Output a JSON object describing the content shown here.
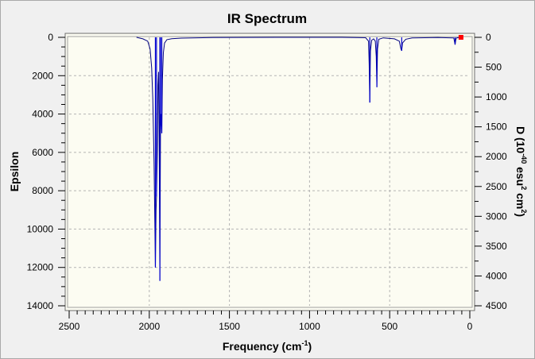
{
  "chart_data": {
    "type": "line",
    "title": "IR Spectrum",
    "xlabel": "Frequency (cm-1)",
    "xlabel_base": "Frequency (cm",
    "xlabel_sup": "-1",
    "xlabel_tail": ")",
    "ylabel_left": "Epsilon",
    "ylabel_right": "D (10-40 esu2 cm2)",
    "ylabel_right_parts": {
      "a": "D (10",
      "a_sup": "-40",
      "b": " esu",
      "b_sup": "2",
      "c": " cm",
      "c_sup": "2",
      "d": ")"
    },
    "x_reversed": true,
    "xlim": [
      2500,
      0
    ],
    "x_ticks": [
      "2500",
      "2000",
      "1500",
      "1000",
      "500",
      "0"
    ],
    "ylim_left": [
      0,
      14000
    ],
    "y_ticks_left": [
      "0",
      "2000",
      "4000",
      "6000",
      "8000",
      "10000",
      "12000",
      "14000"
    ],
    "ylim_right": [
      0,
      4500
    ],
    "y_ticks_right": [
      "0",
      "500",
      "1000",
      "1500",
      "2000",
      "2500",
      "3000",
      "3500",
      "4000",
      "4500"
    ],
    "grid": true,
    "y_inverted": true,
    "series": [
      {
        "name": "",
        "points": [
          [
            2080,
            0
          ],
          [
            2040,
            80
          ],
          [
            2010,
            200
          ],
          [
            1995,
            600
          ],
          [
            1985,
            1600
          ],
          [
            1978,
            3200
          ],
          [
            1970,
            6500
          ],
          [
            1962,
            12000
          ],
          [
            1958,
            9000
          ],
          [
            1955,
            8300
          ],
          [
            1950,
            6000
          ],
          [
            1946,
            2500
          ],
          [
            1942,
            1800
          ],
          [
            1938,
            6000
          ],
          [
            1934,
            12700
          ],
          [
            1930,
            4800
          ],
          [
            1926,
            4000
          ],
          [
            1922,
            5000
          ],
          [
            1918,
            2200
          ],
          [
            1912,
            800
          ],
          [
            1905,
            300
          ],
          [
            1890,
            120
          ],
          [
            1860,
            70
          ],
          [
            1800,
            40
          ],
          [
            1600,
            10
          ],
          [
            1200,
            0
          ],
          [
            800,
            0
          ],
          [
            650,
            20
          ],
          [
            632,
            200
          ],
          [
            628,
            1400
          ],
          [
            624,
            3400
          ],
          [
            620,
            700
          ],
          [
            612,
            150
          ],
          [
            600,
            80
          ],
          [
            590,
            200
          ],
          [
            584,
            1000
          ],
          [
            580,
            2600
          ],
          [
            576,
            600
          ],
          [
            568,
            100
          ],
          [
            540,
            30
          ],
          [
            470,
            80
          ],
          [
            440,
            200
          ],
          [
            430,
            600
          ],
          [
            425,
            700
          ],
          [
            420,
            300
          ],
          [
            400,
            100
          ],
          [
            360,
            30
          ],
          [
            200,
            10
          ],
          [
            100,
            30
          ],
          [
            96,
            200
          ],
          [
            92,
            380
          ],
          [
            88,
            150
          ],
          [
            84,
            30
          ],
          [
            60,
            0
          ],
          [
            40,
            0
          ]
        ],
        "color": "#000080"
      }
    ],
    "sticks": [
      {
        "x": 1962,
        "y": 12000
      },
      {
        "x": 1955,
        "y": 8300
      },
      {
        "x": 1934,
        "y": 12700
      },
      {
        "x": 1930,
        "y": 4800
      },
      {
        "x": 1922,
        "y": 5000
      },
      {
        "x": 624,
        "y": 3400
      },
      {
        "x": 580,
        "y": 2600
      },
      {
        "x": 425,
        "y": 700
      },
      {
        "x": 92,
        "y": 380
      }
    ],
    "stick_color": "#0000d0",
    "marker": {
      "x": 55,
      "y": 0,
      "color": "#ff0000"
    },
    "plot_background": "#fcfcf2",
    "window_background": "#f0f0f0",
    "grid_color": "#b4b4b4"
  }
}
